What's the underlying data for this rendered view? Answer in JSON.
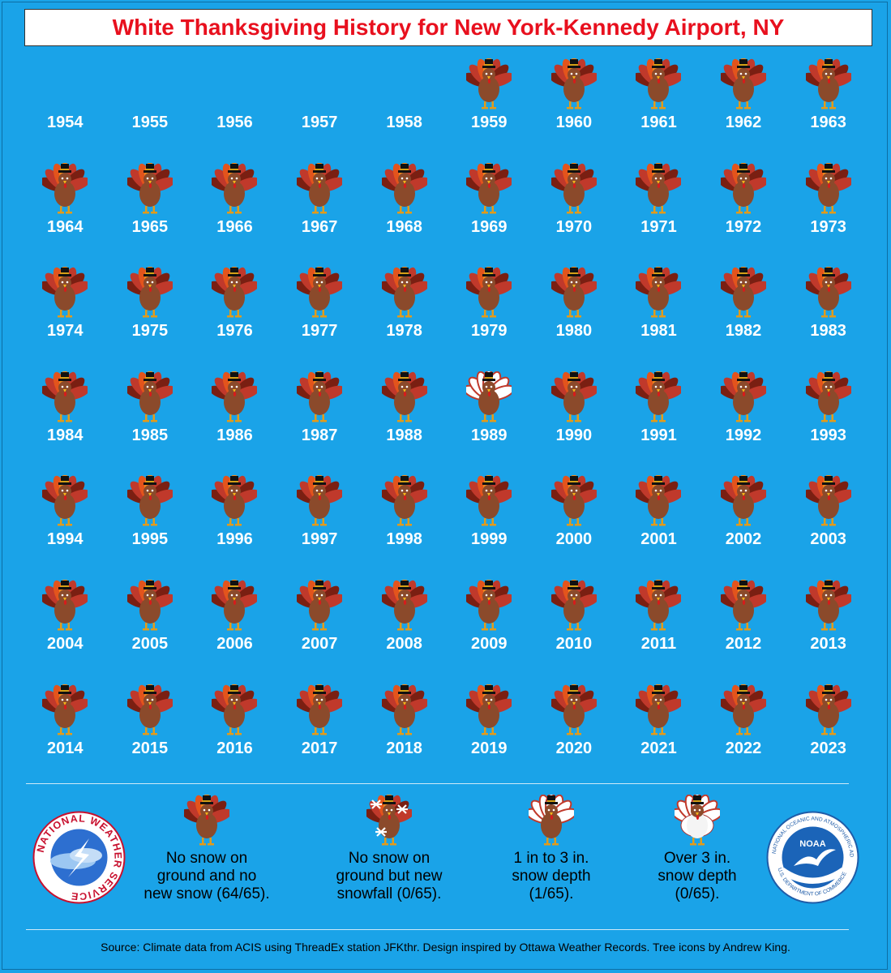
{
  "title": "White Thanksgiving History for New York-Kennedy Airport, NY",
  "colors": {
    "background": "#1aa3e8",
    "title_text": "#e8101e",
    "year_text": "#ffffff"
  },
  "years": [
    {
      "year": "1954",
      "status": "none"
    },
    {
      "year": "1955",
      "status": "none"
    },
    {
      "year": "1956",
      "status": "none"
    },
    {
      "year": "1957",
      "status": "none"
    },
    {
      "year": "1958",
      "status": "none"
    },
    {
      "year": "1959",
      "status": "no-snow"
    },
    {
      "year": "1960",
      "status": "no-snow"
    },
    {
      "year": "1961",
      "status": "no-snow"
    },
    {
      "year": "1962",
      "status": "no-snow"
    },
    {
      "year": "1963",
      "status": "no-snow"
    },
    {
      "year": "1964",
      "status": "no-snow"
    },
    {
      "year": "1965",
      "status": "no-snow"
    },
    {
      "year": "1966",
      "status": "no-snow"
    },
    {
      "year": "1967",
      "status": "no-snow"
    },
    {
      "year": "1968",
      "status": "no-snow"
    },
    {
      "year": "1969",
      "status": "no-snow"
    },
    {
      "year": "1970",
      "status": "no-snow"
    },
    {
      "year": "1971",
      "status": "no-snow"
    },
    {
      "year": "1972",
      "status": "no-snow"
    },
    {
      "year": "1973",
      "status": "no-snow"
    },
    {
      "year": "1974",
      "status": "no-snow"
    },
    {
      "year": "1975",
      "status": "no-snow"
    },
    {
      "year": "1976",
      "status": "no-snow"
    },
    {
      "year": "1977",
      "status": "no-snow"
    },
    {
      "year": "1978",
      "status": "no-snow"
    },
    {
      "year": "1979",
      "status": "no-snow"
    },
    {
      "year": "1980",
      "status": "no-snow"
    },
    {
      "year": "1981",
      "status": "no-snow"
    },
    {
      "year": "1982",
      "status": "no-snow"
    },
    {
      "year": "1983",
      "status": "no-snow"
    },
    {
      "year": "1984",
      "status": "no-snow"
    },
    {
      "year": "1985",
      "status": "no-snow"
    },
    {
      "year": "1986",
      "status": "no-snow"
    },
    {
      "year": "1987",
      "status": "no-snow"
    },
    {
      "year": "1988",
      "status": "no-snow"
    },
    {
      "year": "1989",
      "status": "depth-1-3"
    },
    {
      "year": "1990",
      "status": "no-snow"
    },
    {
      "year": "1991",
      "status": "no-snow"
    },
    {
      "year": "1992",
      "status": "no-snow"
    },
    {
      "year": "1993",
      "status": "no-snow"
    },
    {
      "year": "1994",
      "status": "no-snow"
    },
    {
      "year": "1995",
      "status": "no-snow"
    },
    {
      "year": "1996",
      "status": "no-snow"
    },
    {
      "year": "1997",
      "status": "no-snow"
    },
    {
      "year": "1998",
      "status": "no-snow"
    },
    {
      "year": "1999",
      "status": "no-snow"
    },
    {
      "year": "2000",
      "status": "no-snow"
    },
    {
      "year": "2001",
      "status": "no-snow"
    },
    {
      "year": "2002",
      "status": "no-snow"
    },
    {
      "year": "2003",
      "status": "no-snow"
    },
    {
      "year": "2004",
      "status": "no-snow"
    },
    {
      "year": "2005",
      "status": "no-snow"
    },
    {
      "year": "2006",
      "status": "no-snow"
    },
    {
      "year": "2007",
      "status": "no-snow"
    },
    {
      "year": "2008",
      "status": "no-snow"
    },
    {
      "year": "2009",
      "status": "no-snow"
    },
    {
      "year": "2010",
      "status": "no-snow"
    },
    {
      "year": "2011",
      "status": "no-snow"
    },
    {
      "year": "2012",
      "status": "no-snow"
    },
    {
      "year": "2013",
      "status": "no-snow"
    },
    {
      "year": "2014",
      "status": "no-snow"
    },
    {
      "year": "2015",
      "status": "no-snow"
    },
    {
      "year": "2016",
      "status": "no-snow"
    },
    {
      "year": "2017",
      "status": "no-snow"
    },
    {
      "year": "2018",
      "status": "no-snow"
    },
    {
      "year": "2019",
      "status": "no-snow"
    },
    {
      "year": "2020",
      "status": "no-snow"
    },
    {
      "year": "2021",
      "status": "no-snow"
    },
    {
      "year": "2022",
      "status": "no-snow"
    },
    {
      "year": "2023",
      "status": "no-snow"
    }
  ],
  "legend": [
    {
      "status": "no-snow",
      "line1": "No snow on",
      "line2": "ground and no",
      "line3": "new snow (64/65)."
    },
    {
      "status": "new-snow",
      "line1": "No snow on",
      "line2": "ground but new",
      "line3": "snowfall (0/65)."
    },
    {
      "status": "depth-1-3",
      "line1": "1 in to 3 in.",
      "line2": "snow depth",
      "line3": "(1/65)."
    },
    {
      "status": "depth-3-plus",
      "line1": "Over 3 in.",
      "line2": "snow depth",
      "line3": "(0/65)."
    }
  ],
  "logos": {
    "nws": {
      "icon": "nws-logo",
      "text": "NATIONAL WEATHER SERVICE"
    },
    "noaa": {
      "icon": "noaa-logo",
      "center": "NOAA",
      "ring": "NATIONAL OCEANIC AND ATMOSPHERIC ADMINISTRATION",
      "bottom": "U.S. DEPARTMENT OF COMMERCE"
    }
  },
  "source": "Source: Climate data from ACIS using ThreadEx station JFKthr. Design inspired by Ottawa Weather Records. Tree icons by Andrew King."
}
